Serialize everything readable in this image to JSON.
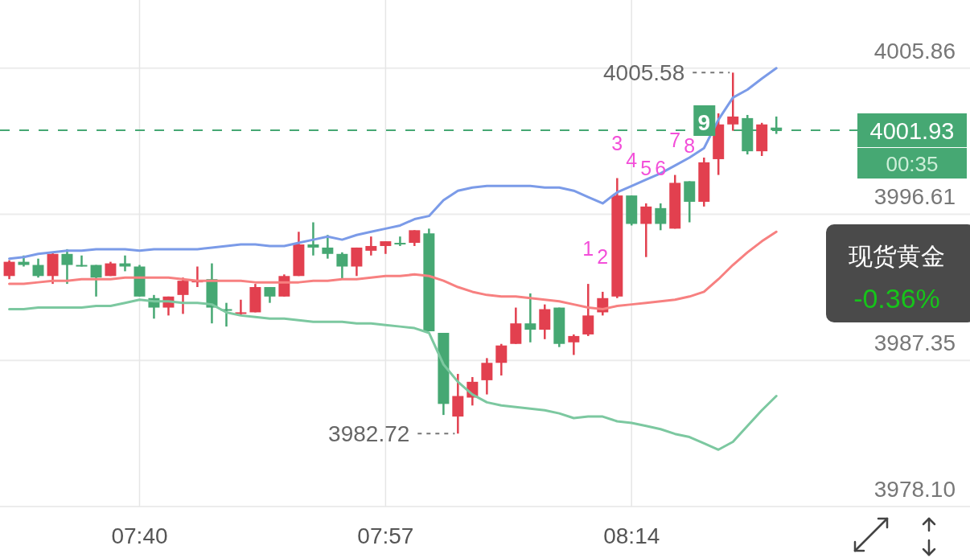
{
  "chart_data": {
    "type": "candlestick",
    "x": [
      7.5167,
      7.5333,
      7.55,
      7.5667,
      7.5833,
      7.6,
      7.6167,
      7.6333,
      7.65,
      7.6667,
      7.6833,
      7.7,
      7.7167,
      7.7333,
      7.75,
      7.7667,
      7.7833,
      7.8,
      7.8167,
      7.8333,
      7.85,
      7.8667,
      7.8833,
      7.9,
      7.9167,
      7.9333,
      7.95,
      7.9667,
      7.9833,
      8,
      8.0167,
      8.0333,
      8.05,
      8.0667,
      8.0833,
      8.1,
      8.1167,
      8.1333,
      8.15,
      8.1667,
      8.1833,
      8.2,
      8.2167,
      8.2333,
      8.25,
      8.2667,
      8.2833,
      8.3,
      8.3167,
      8.3333,
      8.35,
      8.3667,
      8.3833,
      8.4
    ],
    "ohlc": [
      [
        3992.7,
        3993.7,
        3992.5,
        3993.6
      ],
      [
        3993.6,
        3994.0,
        3993.3,
        3993.4
      ],
      [
        3993.4,
        3993.8,
        3992.6,
        3992.7
      ],
      [
        3992.7,
        3994.2,
        3992.2,
        3994.1
      ],
      [
        3994.1,
        3994.4,
        3992.2,
        3993.4
      ],
      [
        3993.4,
        3994.0,
        3993.3,
        3993.4
      ],
      [
        3993.4,
        3993.4,
        3991.4,
        3992.6
      ],
      [
        3992.7,
        3993.6,
        3992.7,
        3993.5
      ],
      [
        3993.5,
        3994.0,
        3993.0,
        3993.3
      ],
      [
        3993.3,
        3993.4,
        3991.4,
        3991.4
      ],
      [
        3991.3,
        3991.5,
        3990.0,
        3990.7
      ],
      [
        3990.7,
        3991.4,
        3990.2,
        3991.4
      ],
      [
        3991.5,
        3992.6,
        3990.3,
        3992.4
      ],
      [
        3992.4,
        3993.3,
        3992.0,
        3992.4
      ],
      [
        3992.5,
        3993.5,
        3989.7,
        3990.7
      ],
      [
        3990.6,
        3991.0,
        3989.5,
        3990.5
      ],
      [
        3990.3,
        3991.2,
        3990.2,
        3990.4
      ],
      [
        3990.4,
        3992.2,
        3990.4,
        3992.0
      ],
      [
        3992.0,
        3992.0,
        3991.0,
        3991.4
      ],
      [
        3991.4,
        3992.8,
        3991.4,
        3992.7
      ],
      [
        3992.7,
        3995.5,
        3992.7,
        3994.7
      ],
      [
        3994.7,
        3996.1,
        3994.0,
        3994.5
      ],
      [
        3994.5,
        3995.3,
        3993.8,
        3994.1
      ],
      [
        3994.1,
        3994.2,
        3992.5,
        3993.3
      ],
      [
        3993.3,
        3994.5,
        3992.7,
        3994.5
      ],
      [
        3994.3,
        3995.2,
        3994.0,
        3994.6
      ],
      [
        3994.6,
        3994.9,
        3994.1,
        3994.9
      ],
      [
        3994.8,
        3995.2,
        3994.6,
        3994.8
      ],
      [
        3994.8,
        3995.6,
        3994.6,
        3995.6
      ],
      [
        3995.4,
        3995.7,
        3989.2,
        3989.2
      ],
      [
        3989.1,
        3989.1,
        3983.9,
        3984.6
      ],
      [
        3983.8,
        3986.5,
        3982.72,
        3985.1
      ],
      [
        3985.0,
        3986.3,
        3984.5,
        3986.0
      ],
      [
        3986.1,
        3987.5,
        3985.2,
        3987.2
      ],
      [
        3987.2,
        3988.4,
        3986.4,
        3988.3
      ],
      [
        3988.4,
        3990.7,
        3988.4,
        3989.7
      ],
      [
        3989.7,
        3991.6,
        3988.5,
        3989.3
      ],
      [
        3989.3,
        3990.9,
        3988.7,
        3990.6
      ],
      [
        3990.7,
        3990.7,
        3988.2,
        3988.4
      ],
      [
        3988.5,
        3989.0,
        3987.7,
        3988.9
      ],
      [
        3989.0,
        3992.2,
        3988.9,
        3990.2
      ],
      [
        3990.4,
        3991.7,
        3990.2,
        3991.3
      ],
      [
        3991.4,
        3998.9,
        3991.3,
        3997.8
      ],
      [
        3997.8,
        3997.8,
        3995.9,
        3996.0
      ],
      [
        3996.0,
        3997.3,
        3993.9,
        3997.1
      ],
      [
        3997.0,
        3997.3,
        3995.6,
        3996.0
      ],
      [
        3995.7,
        3999.1,
        3995.7,
        3998.6
      ],
      [
        3998.7,
        3998.7,
        3996.1,
        3997.4
      ],
      [
        3997.4,
        4000.2,
        3997.1,
        3999.9
      ],
      [
        4000.1,
        4003.0,
        3999.1,
        4002.3
      ],
      [
        4002.3,
        4005.58,
        4001.9,
        4002.8
      ],
      [
        4002.7,
        4002.9,
        4000.4,
        4000.6
      ],
      [
        4000.6,
        4002.4,
        4000.3,
        4002.3
      ],
      [
        4002.1,
        4002.8,
        4001.7,
        4001.93
      ]
    ],
    "colors": [
      "#e2404f",
      "#46a873",
      "#46a873",
      "#e2404f",
      "#46a873",
      "#46a873",
      "#46a873",
      "#e2404f",
      "#46a873",
      "#46a873",
      "#46a873",
      "#e2404f",
      "#e2404f",
      "#e2404f",
      "#46a873",
      "#46a873",
      "#e2404f",
      "#e2404f",
      "#46a873",
      "#e2404f",
      "#e2404f",
      "#46a873",
      "#46a873",
      "#46a873",
      "#e2404f",
      "#e2404f",
      "#e2404f",
      "#46a873",
      "#e2404f",
      "#46a873",
      "#46a873",
      "#e2404f",
      "#e2404f",
      "#e2404f",
      "#e2404f",
      "#e2404f",
      "#46a873",
      "#e2404f",
      "#46a873",
      "#e2404f",
      "#e2404f",
      "#e2404f",
      "#e2404f",
      "#46a873",
      "#e2404f",
      "#46a873",
      "#e2404f",
      "#46a873",
      "#e2404f",
      "#e2404f",
      "#e2404f",
      "#46a873",
      "#e2404f",
      "#46a873"
    ],
    "series": [
      {
        "type": "line",
        "color": "#7b9be8",
        "values": [
          3993.8,
          3993.9,
          3994.1,
          3994.2,
          3994.3,
          3994.3,
          3994.4,
          3994.4,
          3994.4,
          3994.3,
          3994.4,
          3994.4,
          3994.4,
          3994.4,
          3994.5,
          3994.6,
          3994.7,
          3994.7,
          3994.6,
          3994.6,
          3994.8,
          3995.0,
          3995.2,
          3995.0,
          3995.3,
          3995.5,
          3995.7,
          3995.9,
          3996.3,
          3996.5,
          3997.5,
          3998.1,
          3998.3,
          3998.4,
          3998.4,
          3998.4,
          3998.4,
          3998.3,
          3998.3,
          3998.1,
          3997.7,
          3997.3,
          3998.0,
          3998.4,
          3998.8,
          3999.2,
          3999.7,
          4000.2,
          4000.8,
          4002.6,
          4004.0,
          4004.5,
          4005.2,
          4005.86
        ]
      },
      {
        "type": "line",
        "color": "#f78080",
        "values": [
          3992.2,
          3992.2,
          3992.3,
          3992.4,
          3992.4,
          3992.5,
          3992.5,
          3992.5,
          3992.6,
          3992.6,
          3992.6,
          3992.6,
          3992.5,
          3992.4,
          3992.4,
          3992.4,
          3992.4,
          3992.3,
          3992.3,
          3992.3,
          3992.3,
          3992.4,
          3992.4,
          3992.5,
          3992.5,
          3992.6,
          3992.7,
          3992.7,
          3992.8,
          3992.7,
          3992.4,
          3992.0,
          3991.7,
          3991.5,
          3991.4,
          3991.4,
          3991.3,
          3991.2,
          3991.1,
          3990.9,
          3990.7,
          3990.6,
          3990.8,
          3990.9,
          3991.0,
          3991.1,
          3991.2,
          3991.4,
          3991.7,
          3992.5,
          3993.4,
          3994.2,
          3994.9,
          3995.5
        ]
      },
      {
        "type": "line",
        "color": "#7cc8a0",
        "values": [
          3990.6,
          3990.6,
          3990.7,
          3990.7,
          3990.7,
          3990.7,
          3990.8,
          3990.8,
          3991.0,
          3991.2,
          3991.1,
          3991.1,
          3991.0,
          3991.0,
          3990.9,
          3990.4,
          3990.2,
          3990.1,
          3990.0,
          3990.0,
          3989.9,
          3989.8,
          3989.8,
          3989.8,
          3989.7,
          3989.7,
          3989.6,
          3989.5,
          3989.4,
          3989.1,
          3987.1,
          3986.0,
          3985.2,
          3984.7,
          3984.5,
          3984.4,
          3984.3,
          3984.2,
          3984.0,
          3983.7,
          3983.8,
          3983.8,
          3983.5,
          3983.4,
          3983.2,
          3983.0,
          3982.7,
          3982.5,
          3982.1,
          3981.7,
          3982.2,
          3983.2,
          3984.2,
          3985.1
        ]
      }
    ],
    "xlim": [
      7.506,
      8.623
    ],
    "xticks": [
      {
        "value": 7.6667,
        "label": "07:40"
      },
      {
        "value": 7.95,
        "label": "07:57"
      },
      {
        "value": 8.2333,
        "label": "08:14"
      }
    ],
    "ylim": [
      3978.1,
      4010.18
    ],
    "yticks": [
      {
        "value": 3978.1,
        "label": "3978.10"
      },
      3987.35,
      3996.61,
      4005.86
    ],
    "grid": true,
    "ref_lines": [
      {
        "axis": "y",
        "value": 4001.93,
        "label": "4001.93",
        "color": "#46a873",
        "line_style": "dashed"
      }
    ],
    "annotations": [
      {
        "text": "1",
        "x": 8.1833,
        "y": 3992.2
      },
      {
        "text": "2",
        "x": 8.2,
        "y": 3991.7
      },
      {
        "text": "3",
        "x": 8.2167,
        "y": 3998.9
      },
      {
        "text": "4",
        "x": 8.2333,
        "y": 3997.8
      },
      {
        "text": "5",
        "x": 8.25,
        "y": 3997.3
      },
      {
        "text": "6",
        "x": 8.2667,
        "y": 3997.3
      },
      {
        "text": "7",
        "x": 8.2833,
        "y": 3999.1
      },
      {
        "text": "8",
        "x": 8.3,
        "y": 3998.7
      },
      {
        "text": "9",
        "x": 8.3167,
        "y": 4000.2
      },
      {
        "text": "4005.58",
        "x": 8.35,
        "y": 4005.58
      },
      {
        "text": "3982.72",
        "x": 8.0333,
        "y": 3982.72
      },
      "00:35",
      "现货黄金",
      "-0.36%"
    ]
  }
}
